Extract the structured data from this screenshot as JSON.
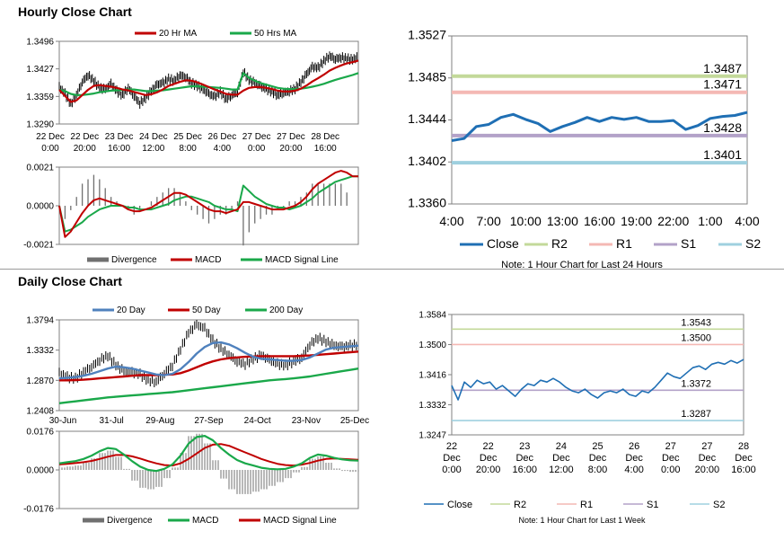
{
  "sections": {
    "hourly_title": "Hourly Close Chart",
    "daily_title": "Daily Close Chart"
  },
  "chart_data": [
    {
      "id": "hourly-price",
      "type": "line",
      "yticks": [
        "1.3496",
        "1.3427",
        "1.3359",
        "1.3290"
      ],
      "ylim": [
        1.329,
        1.3496
      ],
      "xticks": [
        [
          "22 Dec",
          "0:00"
        ],
        [
          "22 Dec",
          "20:00"
        ],
        [
          "23 Dec",
          "16:00"
        ],
        [
          "24 Dec",
          "12:00"
        ],
        [
          "25 Dec",
          "8:00"
        ],
        [
          "26 Dec",
          "4:00"
        ],
        [
          "27 Dec",
          "0:00"
        ],
        [
          "27 Dec",
          "20:00"
        ],
        [
          "28 Dec",
          "16:00"
        ]
      ],
      "legend": [
        "20 Hr MA",
        "50 Hrs MA"
      ],
      "colors": {
        "price": "#000000",
        "ma20": "#c00000",
        "ma50": "#1aa84a"
      },
      "series": [
        {
          "name": "price",
          "values": [
            1.3382,
            1.3365,
            1.334,
            1.3362,
            1.3395,
            1.3412,
            1.3398,
            1.338,
            1.3376,
            1.339,
            1.3372,
            1.3362,
            1.338,
            1.336,
            1.3342,
            1.3355,
            1.3372,
            1.3388,
            1.3392,
            1.3402,
            1.3398,
            1.3412,
            1.3407,
            1.3392,
            1.3385,
            1.3376,
            1.3365,
            1.3358,
            1.337,
            1.3352,
            1.3362,
            1.337,
            1.342,
            1.34,
            1.3392,
            1.3384,
            1.3377,
            1.337,
            1.3362,
            1.3368,
            1.3372,
            1.3378,
            1.3394,
            1.3414,
            1.3432,
            1.343,
            1.3447,
            1.346,
            1.3452,
            1.3456,
            1.3453,
            1.345,
            1.3458
          ]
        },
        {
          "name": "20 Hr MA",
          "values": [
            1.3375,
            1.336,
            1.3345,
            1.3349,
            1.3362,
            1.3375,
            1.3385,
            1.3387,
            1.3385,
            1.3383,
            1.338,
            1.3376,
            1.3374,
            1.337,
            1.3366,
            1.3362,
            1.3364,
            1.3369,
            1.3376,
            1.3385,
            1.339,
            1.3395,
            1.3399,
            1.3398,
            1.3394,
            1.3388,
            1.3382,
            1.3376,
            1.3371,
            1.3365,
            1.3363,
            1.3363,
            1.3373,
            1.338,
            1.3382,
            1.3382,
            1.338,
            1.3377,
            1.3373,
            1.3371,
            1.3371,
            1.3373,
            1.3378,
            1.3386,
            1.3396,
            1.3404,
            1.3413,
            1.3423,
            1.343,
            1.3436,
            1.3441,
            1.3444,
            1.3448
          ]
        },
        {
          "name": "50 Hrs MA",
          "values": [
            1.3375,
            1.3372,
            1.3365,
            1.3362,
            1.3362,
            1.3364,
            1.3366,
            1.3369,
            1.3371,
            1.3373,
            1.3374,
            1.3375,
            1.3376,
            1.3376,
            1.3374,
            1.3372,
            1.3372,
            1.3373,
            1.3374,
            1.3376,
            1.3378,
            1.338,
            1.3382,
            1.3384,
            1.3384,
            1.3383,
            1.3382,
            1.3381,
            1.338,
            1.3378,
            1.3376,
            1.3376,
            1.3417,
            1.3405,
            1.3398,
            1.3392,
            1.3388,
            1.3384,
            1.338,
            1.3378,
            1.3377,
            1.3377,
            1.3378,
            1.338,
            1.3383,
            1.3386,
            1.339,
            1.3395,
            1.34,
            1.3404,
            1.3408,
            1.3412,
            1.3417
          ]
        }
      ]
    },
    {
      "id": "hourly-macd",
      "type": "line",
      "yticks": [
        "0.0021",
        "0.0000",
        "-0.0021"
      ],
      "ylim": [
        -0.0021,
        0.0021
      ],
      "legend": [
        "Divergence",
        "MACD",
        "MACD Signal Line"
      ],
      "colors": {
        "div": "#707070",
        "macd": "#c00000",
        "signal": "#1aa84a"
      },
      "series": [
        {
          "name": "MACD",
          "values": [
            0.0,
            -0.0017,
            -0.0014,
            -0.0009,
            -0.0004,
            0.0,
            0.0003,
            0.0004,
            0.0003,
            0.0002,
            0.0001,
            0.0,
            -0.0002,
            -0.0003,
            -0.0003,
            -0.0002,
            -0.0001,
            0.0001,
            0.0003,
            0.0005,
            0.0007,
            0.0007,
            0.0006,
            0.0004,
            0.0002,
            0.0,
            -0.0002,
            -0.0003,
            -0.0003,
            -0.0004,
            -0.0003,
            -0.0002,
            0.0002,
            0.0002,
            0.0001,
            0.0,
            -0.0001,
            -0.0002,
            -0.0002,
            -0.0002,
            -0.0001,
            0.0,
            0.0002,
            0.0005,
            0.0009,
            0.0012,
            0.0014,
            0.0016,
            0.0018,
            0.0019,
            0.0018,
            0.0016,
            0.0016
          ]
        },
        {
          "name": "MACD Signal Line",
          "values": [
            0.0,
            -0.0014,
            -0.0013,
            -0.0011,
            -0.0009,
            -0.0006,
            -0.0004,
            -0.0002,
            -0.0001,
            0.0,
            0.0,
            0.0,
            -0.0001,
            -0.0001,
            -0.0002,
            -0.0002,
            -0.0002,
            -0.0001,
            0.0,
            0.0001,
            0.0003,
            0.0004,
            0.0005,
            0.0005,
            0.0004,
            0.0003,
            0.0002,
            0.0,
            -0.0001,
            -0.0002,
            -0.0002,
            -0.0003,
            0.0011,
            0.0008,
            0.0005,
            0.0003,
            0.0001,
            0.0,
            -0.0001,
            -0.0001,
            -0.0002,
            -0.0001,
            0.0,
            0.0002,
            0.0004,
            0.0007,
            0.0009,
            0.0011,
            0.0013,
            0.0014,
            0.0015,
            0.0016,
            0.0016
          ]
        }
      ]
    },
    {
      "id": "hourly-24h",
      "type": "line",
      "yticks": [
        "1.3527",
        "1.3485",
        "1.3444",
        "1.3402",
        "1.3360"
      ],
      "ylim": [
        1.336,
        1.3527
      ],
      "xticks": [
        "4:00",
        "7:00",
        "10:00",
        "13:00",
        "16:00",
        "19:00",
        "22:00",
        "1:00",
        "4:00"
      ],
      "legend": [
        "Close",
        "R2",
        "R1",
        "S1",
        "S2"
      ],
      "colors": {
        "Close": "#1f6fb4",
        "R2": "#c3d99a",
        "R1": "#f4b8b4",
        "S1": "#b3a2c8",
        "S2": "#9fd0df"
      },
      "levels": {
        "R2": 1.3487,
        "R1": 1.3471,
        "S1": 1.3428,
        "S2": 1.3401
      },
      "level_labels": {
        "R2": "1.3487",
        "R1": "1.3471",
        "S1": "1.3428",
        "S2": "1.3401"
      },
      "values": [
        1.3423,
        1.3425,
        1.3437,
        1.3439,
        1.3446,
        1.3449,
        1.3444,
        1.344,
        1.3432,
        1.3437,
        1.3441,
        1.3446,
        1.3442,
        1.3446,
        1.3444,
        1.3446,
        1.3442,
        1.3442,
        1.3443,
        1.3434,
        1.3438,
        1.3445,
        1.3447,
        1.3448,
        1.3451
      ],
      "note": "Note: 1 Hour Chart for Last 24 Hours"
    },
    {
      "id": "daily-price",
      "type": "line",
      "yticks": [
        "1.3794",
        "1.3332",
        "1.2870",
        "1.2408"
      ],
      "ylim": [
        1.2408,
        1.3794
      ],
      "xticks": [
        "30-Jun",
        "31-Jul",
        "29-Aug",
        "27-Sep",
        "24-Oct",
        "23-Nov",
        "25-Dec"
      ],
      "legend": [
        "20 Day",
        "50 Day",
        "200 Day"
      ],
      "colors": {
        "price": "#000000",
        "d20": "#4f81bd",
        "d50": "#c00000",
        "d200": "#1aa84a"
      },
      "series": [
        {
          "name": "price",
          "values": [
            1.298,
            1.292,
            1.29,
            1.3,
            1.308,
            1.318,
            1.325,
            1.31,
            1.301,
            1.299,
            1.296,
            1.287,
            1.285,
            1.298,
            1.31,
            1.335,
            1.36,
            1.372,
            1.366,
            1.348,
            1.335,
            1.326,
            1.316,
            1.312,
            1.32,
            1.325,
            1.318,
            1.312,
            1.31,
            1.316,
            1.322,
            1.342,
            1.352,
            1.346,
            1.34,
            1.338,
            1.34,
            1.342
          ]
        },
        {
          "name": "20 Day",
          "values": [
            1.29,
            1.291,
            1.292,
            1.294,
            1.297,
            1.301,
            1.305,
            1.308,
            1.307,
            1.305,
            1.302,
            1.299,
            1.296,
            1.295,
            1.297,
            1.304,
            1.315,
            1.328,
            1.338,
            1.344,
            1.345,
            1.342,
            1.336,
            1.329,
            1.323,
            1.32,
            1.319,
            1.318,
            1.317,
            1.317,
            1.318,
            1.322,
            1.328,
            1.334,
            1.337,
            1.338,
            1.339,
            1.34
          ]
        },
        {
          "name": "50 Day",
          "values": [
            1.287,
            1.287,
            1.2875,
            1.288,
            1.289,
            1.29,
            1.291,
            1.292,
            1.293,
            1.294,
            1.295,
            1.295,
            1.295,
            1.2955,
            1.296,
            1.298,
            1.302,
            1.307,
            1.312,
            1.316,
            1.319,
            1.321,
            1.322,
            1.323,
            1.3235,
            1.324,
            1.324,
            1.324,
            1.324,
            1.324,
            1.3245,
            1.325,
            1.326,
            1.327,
            1.328,
            1.329,
            1.33,
            1.331
          ]
        },
        {
          "name": "200 Day",
          "values": [
            1.252,
            1.2535,
            1.255,
            1.2565,
            1.258,
            1.2595,
            1.261,
            1.262,
            1.263,
            1.264,
            1.265,
            1.266,
            1.267,
            1.268,
            1.269,
            1.2705,
            1.272,
            1.2735,
            1.275,
            1.2765,
            1.278,
            1.2795,
            1.281,
            1.2825,
            1.284,
            1.2855,
            1.287,
            1.288,
            1.289,
            1.29,
            1.2915,
            1.293,
            1.295,
            1.297,
            1.299,
            1.301,
            1.303,
            1.305
          ]
        }
      ]
    },
    {
      "id": "daily-macd",
      "type": "line",
      "yticks": [
        "0.0176",
        "0.0000",
        "-0.0176"
      ],
      "ylim": [
        -0.0176,
        0.0176
      ],
      "legend": [
        "Divergence",
        "MACD",
        "MACD Signal Line"
      ],
      "colors": {
        "div": "#707070",
        "macd": "#1aa84a",
        "signal": "#c00000"
      },
      "series": [
        {
          "name": "MACD",
          "values": [
            0.003,
            0.0035,
            0.004,
            0.005,
            0.0065,
            0.0085,
            0.01,
            0.0095,
            0.007,
            0.004,
            0.0015,
            0.0,
            -0.0005,
            0.0005,
            0.0025,
            0.0065,
            0.012,
            0.015,
            0.0155,
            0.0135,
            0.01,
            0.007,
            0.0045,
            0.003,
            0.002,
            0.001,
            0.0005,
            0.0003,
            0.0005,
            0.0015,
            0.003,
            0.0055,
            0.007,
            0.0065,
            0.0055,
            0.0048,
            0.0044,
            0.0042
          ]
        },
        {
          "name": "MACD Signal Line",
          "values": [
            0.0025,
            0.0028,
            0.0031,
            0.0035,
            0.0041,
            0.005,
            0.006,
            0.0068,
            0.0068,
            0.0062,
            0.0052,
            0.004,
            0.003,
            0.0022,
            0.002,
            0.003,
            0.005,
            0.0075,
            0.01,
            0.0115,
            0.0118,
            0.011,
            0.0095,
            0.008,
            0.0065,
            0.005,
            0.0038,
            0.0028,
            0.0022,
            0.002,
            0.0024,
            0.0032,
            0.0042,
            0.005,
            0.0052,
            0.005,
            0.0048,
            0.0046
          ]
        }
      ]
    },
    {
      "id": "daily-week",
      "type": "line",
      "yticks": [
        "1.3584",
        "1.3500",
        "1.3416",
        "1.3332",
        "1.3247"
      ],
      "ylim": [
        1.3247,
        1.3584
      ],
      "xticks": [
        [
          "22",
          "Dec",
          "0:00"
        ],
        [
          "22",
          "Dec",
          "20:00"
        ],
        [
          "23",
          "Dec",
          "16:00"
        ],
        [
          "24",
          "Dec",
          "12:00"
        ],
        [
          "25",
          "Dec",
          "8:00"
        ],
        [
          "26",
          "Dec",
          "4:00"
        ],
        [
          "27",
          "Dec",
          "0:00"
        ],
        [
          "27",
          "Dec",
          "20:00"
        ],
        [
          "28",
          "Dec",
          "16:00"
        ]
      ],
      "legend": [
        "Close",
        "R2",
        "R1",
        "S1",
        "S2"
      ],
      "colors": {
        "Close": "#1f6fb4",
        "R2": "#c3d99a",
        "R1": "#f4b8b4",
        "S1": "#b3a2c8",
        "S2": "#9fd0df"
      },
      "levels": {
        "R2": 1.3543,
        "R1": 1.35,
        "S1": 1.3372,
        "S2": 1.3287
      },
      "level_labels": {
        "R2": "1.3543",
        "R1": "1.3500",
        "S1": "1.3372",
        "S2": "1.3287"
      },
      "values": [
        1.3385,
        1.3345,
        1.3395,
        1.338,
        1.34,
        1.339,
        1.3395,
        1.3375,
        1.3385,
        1.337,
        1.3355,
        1.3375,
        1.339,
        1.3385,
        1.34,
        1.3395,
        1.3405,
        1.3395,
        1.338,
        1.337,
        1.3365,
        1.3375,
        1.336,
        1.335,
        1.3365,
        1.337,
        1.3365,
        1.3375,
        1.336,
        1.3355,
        1.337,
        1.3365,
        1.338,
        1.34,
        1.342,
        1.341,
        1.3405,
        1.342,
        1.3435,
        1.344,
        1.343,
        1.3445,
        1.345,
        1.3445,
        1.3455,
        1.3448,
        1.3458
      ],
      "note": "Note: 1 Hour Chart for Last 1 Week"
    }
  ]
}
